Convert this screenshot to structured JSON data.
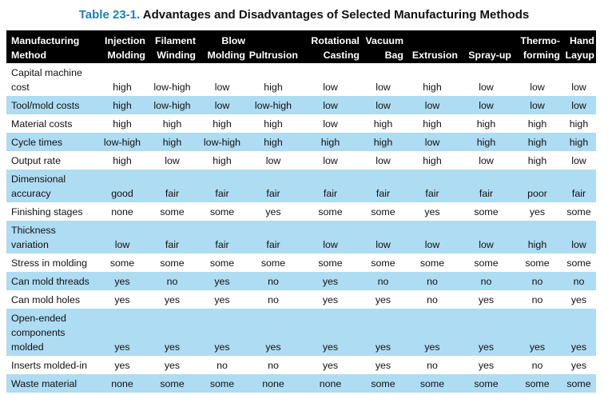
{
  "title": {
    "number": "Table 23-1.",
    "text": "Advantages and Disadvantages of Selected Manufacturing Methods"
  },
  "columns": [
    {
      "line1": "Manufacturing",
      "line2": "Method"
    },
    {
      "line1": "Injection",
      "line2": "Molding"
    },
    {
      "line1": "Filament",
      "line2": "Winding"
    },
    {
      "line1": "Blow",
      "line2": "Molding"
    },
    {
      "line1": "",
      "line2": "Pultrusion"
    },
    {
      "line1": "Rotational",
      "line2": "Casting"
    },
    {
      "line1": "Vacuum",
      "line2": "Bag"
    },
    {
      "line1": "",
      "line2": "Extrusion"
    },
    {
      "line1": "",
      "line2": "Spray-up"
    },
    {
      "line1": "Thermo-",
      "line2": "forming"
    },
    {
      "line1": "Hand",
      "line2": "Layup"
    }
  ],
  "rows": [
    {
      "label": "Capital machine cost",
      "values": [
        "high",
        "low-high",
        "low",
        "high",
        "low",
        "low",
        "high",
        "low",
        "low",
        "low"
      ]
    },
    {
      "label": "Tool/mold costs",
      "values": [
        "high",
        "low-high",
        "low",
        "low-high",
        "low",
        "low",
        "low",
        "low",
        "low",
        "low"
      ]
    },
    {
      "label": "Material costs",
      "values": [
        "high",
        "high",
        "high",
        "high",
        "low",
        "high",
        "high",
        "high",
        "high",
        "high"
      ]
    },
    {
      "label": "Cycle times",
      "values": [
        "low-high",
        "high",
        "low-high",
        "high",
        "high",
        "high",
        "low",
        "high",
        "high",
        "high"
      ]
    },
    {
      "label": "Output rate",
      "values": [
        "high",
        "low",
        "high",
        "low",
        "low",
        "low",
        "high",
        "low",
        "high",
        "low"
      ]
    },
    {
      "label": "Dimensional accuracy",
      "values": [
        "good",
        "fair",
        "fair",
        "fair",
        "fair",
        "fair",
        "fair",
        "fair",
        "poor",
        "fair"
      ]
    },
    {
      "label": "Finishing stages",
      "values": [
        "none",
        "some",
        "some",
        "yes",
        "some",
        "some",
        "yes",
        "some",
        "yes",
        "some"
      ]
    },
    {
      "label": "Thickness variation",
      "values": [
        "low",
        "fair",
        "fair",
        "fair",
        "low",
        "low",
        "low",
        "low",
        "high",
        "low"
      ]
    },
    {
      "label": "Stress in molding",
      "values": [
        "some",
        "some",
        "some",
        "some",
        "some",
        "some",
        "some",
        "some",
        "some",
        "some"
      ]
    },
    {
      "label": "Can mold threads",
      "values": [
        "yes",
        "no",
        "yes",
        "no",
        "yes",
        "no",
        "no",
        "no",
        "no",
        "no"
      ]
    },
    {
      "label": "Can mold holes",
      "values": [
        "yes",
        "yes",
        "yes",
        "no",
        "yes",
        "yes",
        "no",
        "yes",
        "no",
        "yes"
      ]
    },
    {
      "label": "Open-ended components molded",
      "values": [
        "yes",
        "yes",
        "yes",
        "yes",
        "yes",
        "yes",
        "yes",
        "yes",
        "yes",
        "yes"
      ]
    },
    {
      "label": "Inserts molded-in",
      "values": [
        "yes",
        "yes",
        "no",
        "no",
        "yes",
        "yes",
        "no",
        "yes",
        "no",
        "yes"
      ]
    },
    {
      "label": "Waste material",
      "values": [
        "none",
        "some",
        "some",
        "none",
        "none",
        "some",
        "some",
        "some",
        "some",
        "some"
      ]
    }
  ]
}
